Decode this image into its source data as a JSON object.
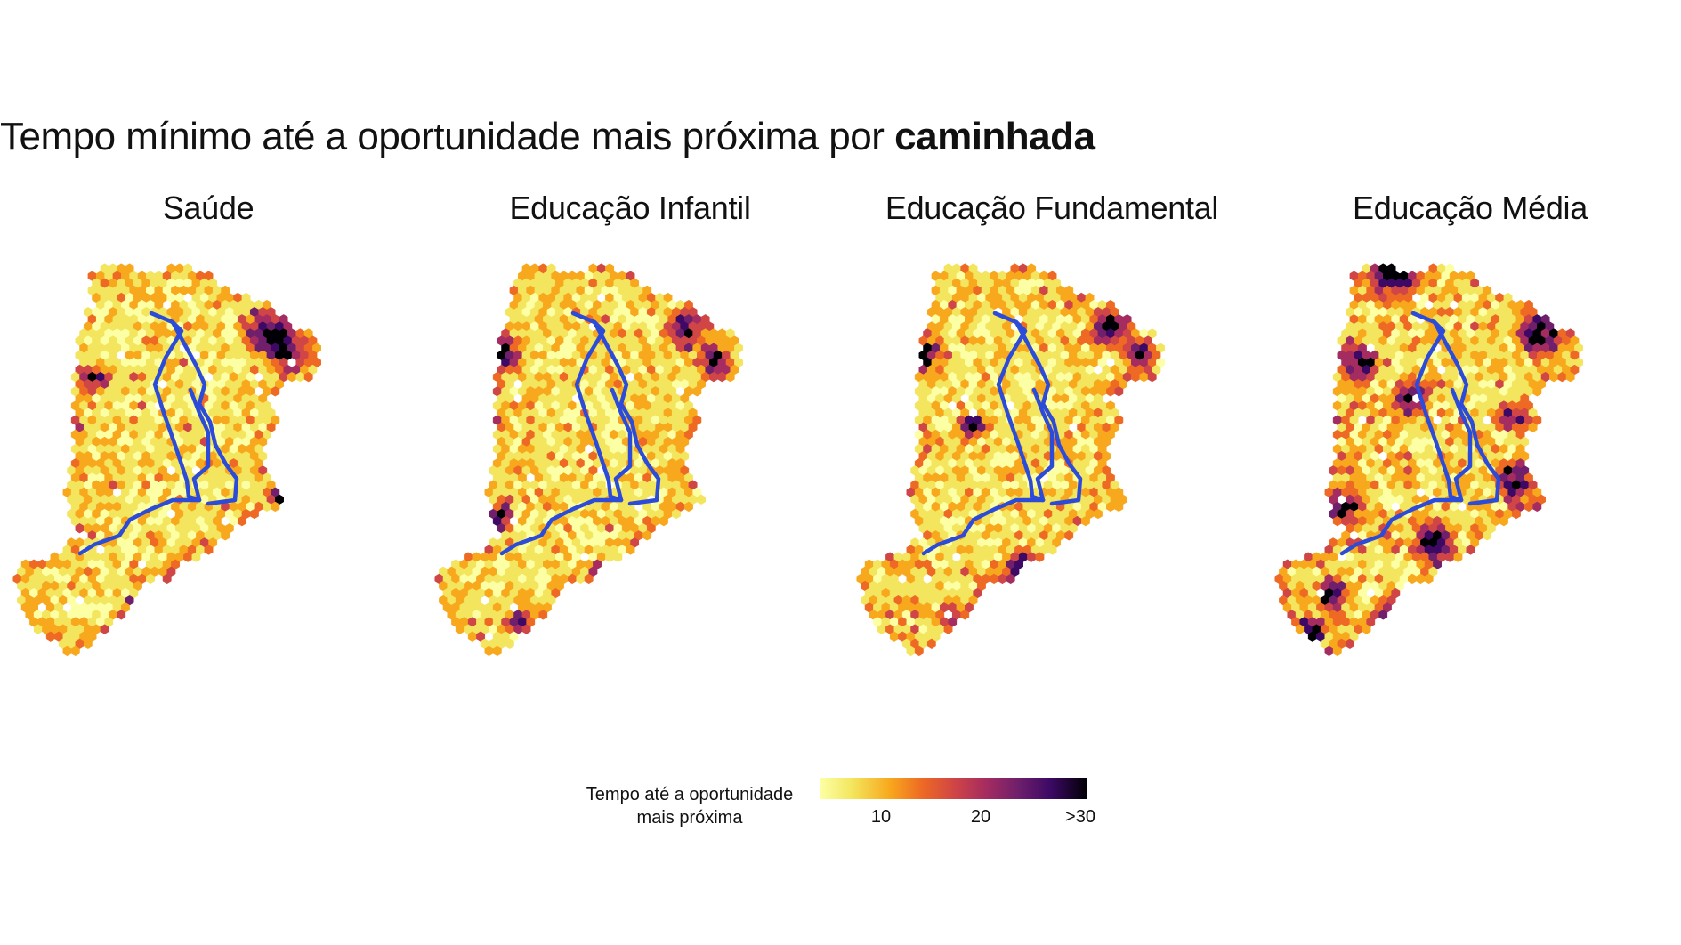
{
  "title": {
    "prefix": "Tempo mínimo até a oportunidade mais próxima por",
    "emphasis": "caminhada"
  },
  "panels": [
    {
      "title": "Saúde"
    },
    {
      "title": "Educação Infantil"
    },
    {
      "title": "Educação Fundamental"
    },
    {
      "title": "Educação Média"
    }
  ],
  "legend": {
    "title_line1": "Tempo até a oportunidade",
    "title_line2": "mais próxima",
    "ticks": [
      "10",
      "20",
      ">30"
    ],
    "colors": [
      "#fcffa4",
      "#f3e55d",
      "#f8a81d",
      "#ee6a24",
      "#d04545",
      "#a52c60",
      "#6f1f6b",
      "#3d0965",
      "#000004"
    ]
  },
  "route_color": "#2c4bd8"
}
